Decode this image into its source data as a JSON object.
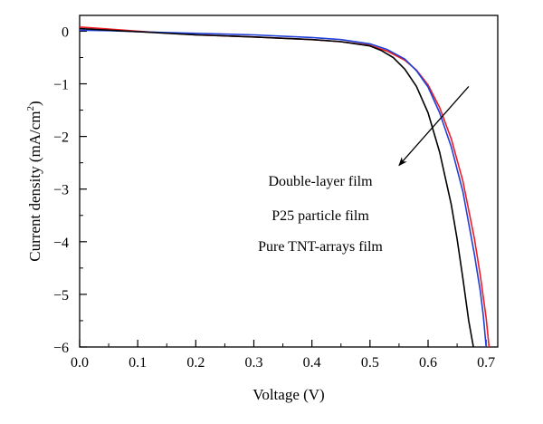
{
  "chart_data": {
    "type": "line",
    "xlabel": "Voltage (V)",
    "ylabel_main": "Current density (mA/cm",
    "ylabel_sup": "2",
    "ylabel_close": ")",
    "xlim": [
      0.0,
      0.72
    ],
    "ylim": [
      -6,
      0.3
    ],
    "x_ticks": [
      0.0,
      0.1,
      0.2,
      0.3,
      0.4,
      0.5,
      0.6,
      0.7
    ],
    "x_tick_labels": [
      "0.0",
      "0.1",
      "0.2",
      "0.3",
      "0.4",
      "0.5",
      "0.6",
      "0.7"
    ],
    "y_ticks": [
      0,
      -1,
      -2,
      -3,
      -4,
      -5,
      -6
    ],
    "y_tick_labels": [
      "0",
      "−1",
      "−2",
      "−3",
      "−4",
      "−5",
      "−6"
    ],
    "grid": false,
    "legend_items": [
      "Double-layer film",
      "P25 particle film",
      "Pure TNT-arrays film"
    ],
    "arrow": {
      "from": [
        0.67,
        -1.05
      ],
      "to": [
        0.55,
        -2.55
      ]
    },
    "series": [
      {
        "color": "#ee1c25",
        "x": [
          0.0,
          0.05,
          0.1,
          0.2,
          0.3,
          0.4,
          0.45,
          0.5,
          0.53,
          0.56,
          0.58,
          0.6,
          0.62,
          0.64,
          0.66,
          0.68,
          0.69,
          0.7,
          0.705
        ],
        "y": [
          0.08,
          0.04,
          0.0,
          -0.07,
          -0.11,
          -0.16,
          -0.2,
          -0.27,
          -0.38,
          -0.55,
          -0.74,
          -1.02,
          -1.45,
          -2.05,
          -2.85,
          -3.95,
          -4.65,
          -5.45,
          -6.0
        ]
      },
      {
        "color": "#1f3fd6",
        "x": [
          0.0,
          0.05,
          0.1,
          0.2,
          0.3,
          0.4,
          0.45,
          0.5,
          0.53,
          0.56,
          0.58,
          0.6,
          0.62,
          0.64,
          0.66,
          0.68,
          0.69,
          0.695,
          0.7
        ],
        "y": [
          0.02,
          0.01,
          -0.01,
          -0.04,
          -0.07,
          -0.12,
          -0.16,
          -0.24,
          -0.35,
          -0.53,
          -0.75,
          -1.06,
          -1.55,
          -2.2,
          -3.05,
          -4.25,
          -4.95,
          -5.4,
          -6.0
        ]
      },
      {
        "color": "#000000",
        "x": [
          0.0,
          0.05,
          0.1,
          0.2,
          0.3,
          0.4,
          0.45,
          0.5,
          0.52,
          0.54,
          0.56,
          0.58,
          0.6,
          0.62,
          0.64,
          0.65,
          0.66,
          0.67,
          0.678
        ],
        "y": [
          0.05,
          0.02,
          -0.01,
          -0.07,
          -0.11,
          -0.16,
          -0.2,
          -0.28,
          -0.37,
          -0.5,
          -0.72,
          -1.05,
          -1.55,
          -2.3,
          -3.3,
          -3.95,
          -4.7,
          -5.5,
          -6.0
        ]
      }
    ]
  }
}
